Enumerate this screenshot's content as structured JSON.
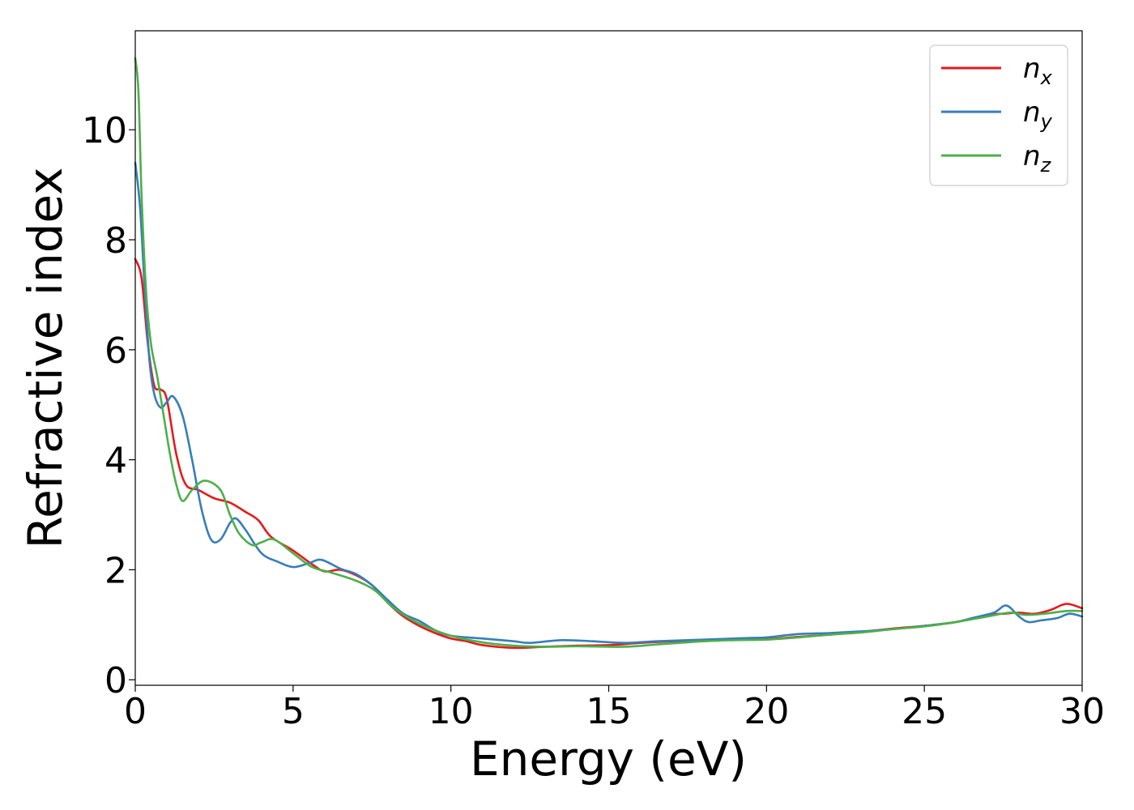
{
  "chart_data": {
    "type": "line",
    "title": "",
    "xlabel": "Energy (eV)",
    "ylabel": "Refractive index",
    "xlim": [
      0,
      30
    ],
    "ylim": [
      -0.1,
      11.8
    ],
    "xticks": [
      0,
      5,
      10,
      15,
      20,
      25,
      30
    ],
    "yticks": [
      0,
      2,
      4,
      6,
      8,
      10
    ],
    "grid": false,
    "legend_position": "top-right",
    "series": [
      {
        "name": "n",
        "subscript": "x",
        "color": "#e41a1c",
        "x": [
          0,
          0.2,
          0.4,
          0.6,
          0.8,
          1.0,
          1.3,
          1.6,
          2.0,
          2.5,
          3.0,
          3.5,
          3.9,
          4.3,
          5.0,
          5.6,
          6.0,
          6.5,
          7.0,
          7.5,
          8.0,
          8.5,
          9.0,
          9.5,
          10.0,
          10.5,
          11.0,
          12.0,
          13.0,
          14.0,
          15.0,
          16.0,
          17.0,
          18.0,
          19.0,
          20.0,
          21.0,
          22.0,
          23.0,
          24.0,
          25.0,
          26.0,
          27.0,
          27.5,
          28.0,
          28.5,
          29.0,
          29.5,
          30.0
        ],
        "y": [
          7.65,
          7.3,
          6.1,
          5.35,
          5.28,
          5.1,
          4.1,
          3.55,
          3.45,
          3.3,
          3.22,
          3.05,
          2.9,
          2.6,
          2.35,
          2.1,
          1.97,
          2.0,
          1.9,
          1.72,
          1.4,
          1.15,
          0.98,
          0.85,
          0.75,
          0.7,
          0.63,
          0.58,
          0.6,
          0.62,
          0.63,
          0.67,
          0.7,
          0.72,
          0.73,
          0.74,
          0.78,
          0.82,
          0.87,
          0.93,
          0.98,
          1.05,
          1.18,
          1.2,
          1.22,
          1.2,
          1.27,
          1.38,
          1.3
        ]
      },
      {
        "name": "n",
        "subscript": "y",
        "color": "#377eb8",
        "x": [
          0,
          0.15,
          0.3,
          0.45,
          0.6,
          0.8,
          1.0,
          1.2,
          1.5,
          1.8,
          2.1,
          2.4,
          2.7,
          3.0,
          3.2,
          3.5,
          4.0,
          4.5,
          5.0,
          5.5,
          5.9,
          6.5,
          7.0,
          7.5,
          8.0,
          8.5,
          9.0,
          9.5,
          10.0,
          11.0,
          12.0,
          12.5,
          13.5,
          14.5,
          15.5,
          16.5,
          17.5,
          18.5,
          19.5,
          20.0,
          21.0,
          22.0,
          23.0,
          24.0,
          25.0,
          26.0,
          26.5,
          27.2,
          27.6,
          28.0,
          28.3,
          28.7,
          29.2,
          29.6,
          30.0
        ],
        "y": [
          9.4,
          8.6,
          7.1,
          5.8,
          5.2,
          4.95,
          5.05,
          5.15,
          4.8,
          4.0,
          3.1,
          2.55,
          2.55,
          2.85,
          2.93,
          2.72,
          2.3,
          2.15,
          2.05,
          2.12,
          2.18,
          2.02,
          1.92,
          1.72,
          1.45,
          1.2,
          1.07,
          0.9,
          0.8,
          0.75,
          0.7,
          0.67,
          0.72,
          0.7,
          0.67,
          0.7,
          0.72,
          0.74,
          0.76,
          0.77,
          0.83,
          0.85,
          0.88,
          0.92,
          0.98,
          1.05,
          1.12,
          1.22,
          1.35,
          1.15,
          1.05,
          1.08,
          1.12,
          1.2,
          1.15
        ]
      },
      {
        "name": "n",
        "subscript": "z",
        "color": "#4daf4a",
        "x": [
          0,
          0.1,
          0.2,
          0.35,
          0.5,
          0.7,
          0.9,
          1.1,
          1.3,
          1.5,
          1.8,
          2.2,
          2.7,
          3.0,
          3.3,
          3.7,
          4.0,
          4.4,
          5.0,
          5.6,
          6.2,
          7.0,
          7.6,
          8.2,
          9.0,
          10.0,
          11.0,
          12.0,
          13.0,
          14.0,
          15.5,
          16.5,
          18.0,
          19.0,
          20.0,
          21.0,
          22.0,
          23.0,
          24.0,
          25.0,
          26.0,
          27.0,
          27.7,
          28.2,
          28.8,
          29.5,
          30.0
        ],
        "y": [
          11.3,
          10.7,
          8.8,
          7.0,
          6.1,
          5.5,
          4.8,
          4.1,
          3.55,
          3.25,
          3.45,
          3.62,
          3.45,
          3.0,
          2.65,
          2.45,
          2.5,
          2.55,
          2.3,
          2.05,
          1.95,
          1.8,
          1.62,
          1.3,
          1.02,
          0.8,
          0.68,
          0.62,
          0.6,
          0.61,
          0.6,
          0.64,
          0.7,
          0.72,
          0.73,
          0.77,
          0.82,
          0.86,
          0.92,
          0.97,
          1.05,
          1.15,
          1.22,
          1.18,
          1.2,
          1.25,
          1.25
        ]
      }
    ]
  }
}
